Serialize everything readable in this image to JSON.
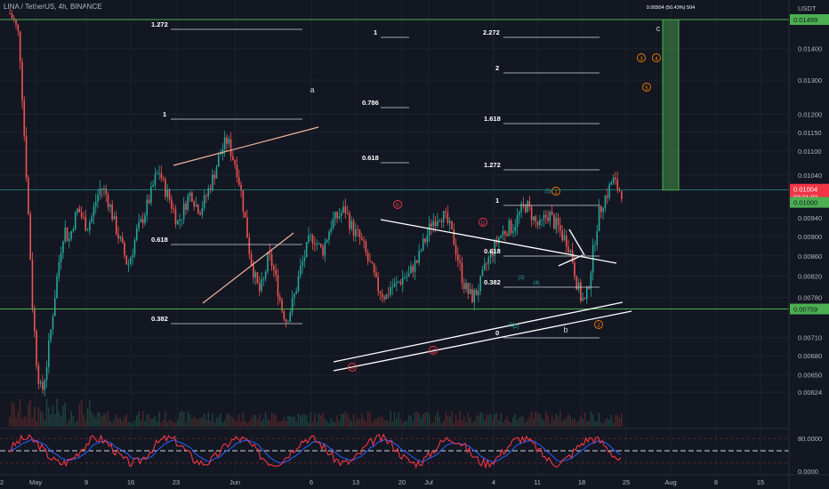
{
  "header": {
    "title": "LINA / TetherUS, 4h, BINANCE"
  },
  "chart_data": {
    "type": "candlestick",
    "symbol": "LINA / TetherUS",
    "timeframe": "4h",
    "exchange": "BINANCE",
    "price_axis": {
      "currency": "USDT",
      "scale": "log",
      "ylim": [
        0.006,
        0.0155
      ],
      "ticks": [
        "0.01400",
        "0.01300",
        "0.01200",
        "0.01150",
        "0.01100",
        "0.01040",
        "0.00940",
        "0.00900",
        "0.00860",
        "0.00820",
        "0.00780",
        "0.00710",
        "0.00680",
        "0.00650",
        "0.00624"
      ]
    },
    "time_axis": {
      "ticks": [
        "May",
        "9",
        "16",
        "23",
        "Jun",
        "6",
        "13",
        "20",
        "Jul",
        "4",
        "11",
        "18",
        "25",
        "Aug",
        "8",
        "15",
        "22"
      ]
    },
    "price_badges": {
      "top_line": "0.01499",
      "current": "0.01004",
      "countdown": "03:21:03",
      "level2": "0.01000",
      "bottom_line": "0.00759"
    },
    "colors": {
      "up": "#26a69a",
      "down": "#ef5350",
      "level_line": "#4caf50",
      "trend_pink": "#f3b49d",
      "trend_white": "#ffffff",
      "wave_orange": "#f57c00",
      "wave_red": "#f23645",
      "wave_teal": "#26a69a",
      "rsi": "#f23645",
      "rsi_signal": "#2962ff"
    },
    "horizontal_levels": [
      "0.01499",
      "0.00759"
    ],
    "fib_labels": [
      {
        "text": "1.272",
        "group": "left"
      },
      {
        "text": "1",
        "group": "left"
      },
      {
        "text": "0.618",
        "group": "left"
      },
      {
        "text": "0.382",
        "group": "left"
      },
      {
        "text": "1",
        "group": "mid"
      },
      {
        "text": "0.786",
        "group": "mid"
      },
      {
        "text": "0.618",
        "group": "mid"
      },
      {
        "text": "2.272",
        "group": "right"
      },
      {
        "text": "2",
        "group": "right"
      },
      {
        "text": "1.618",
        "group": "right"
      },
      {
        "text": "1.272",
        "group": "right"
      },
      {
        "text": "1",
        "group": "right"
      },
      {
        "text": "0.618",
        "group": "right"
      },
      {
        "text": "0.382",
        "group": "right"
      },
      {
        "text": "0",
        "group": "right"
      }
    ],
    "projection": {
      "label": "0.00504 (50.43%) 504",
      "wave": "c"
    },
    "wave_labels": [
      {
        "text": "a",
        "style": "plain"
      },
      {
        "text": "b",
        "style": "plain"
      },
      {
        "text": "c",
        "style": "plain"
      },
      {
        "text": "A",
        "style": "red"
      },
      {
        "text": "B",
        "style": "red"
      },
      {
        "text": "C",
        "style": "red"
      },
      {
        "text": "D",
        "style": "red"
      },
      {
        "text": "1",
        "style": "orange"
      },
      {
        "text": "2",
        "style": "orange"
      },
      {
        "text": "3",
        "style": "orange"
      },
      {
        "text": "4",
        "style": "orange"
      },
      {
        "text": "5",
        "style": "orange"
      },
      {
        "text": "(1)",
        "style": "teal"
      },
      {
        "text": "(2)",
        "style": "teal"
      },
      {
        "text": "(3)",
        "style": "teal"
      },
      {
        "text": "(4)",
        "style": "teal"
      },
      {
        "text": "(5)",
        "style": "teal"
      }
    ],
    "rsi": {
      "ticks": [
        "80.0000",
        "0.0000"
      ],
      "upper": 80,
      "lower": 20,
      "mid": 50
    },
    "series_closes": [
      0.0152,
      0.0149,
      0.0144,
      0.0118,
      0.0096,
      0.0076,
      0.0066,
      0.0062,
      0.0066,
      0.0072,
      0.0079,
      0.0086,
      0.0092,
      0.0089,
      0.0093,
      0.0096,
      0.0094,
      0.0092,
      0.0094,
      0.0098,
      0.0101,
      0.01,
      0.0097,
      0.0093,
      0.009,
      0.0087,
      0.0084,
      0.0087,
      0.0091,
      0.0093,
      0.0096,
      0.0099,
      0.0103,
      0.0105,
      0.0101,
      0.0099,
      0.0096,
      0.0093,
      0.0095,
      0.0098,
      0.01,
      0.0097,
      0.0096,
      0.0098,
      0.0101,
      0.0104,
      0.0108,
      0.0111,
      0.0113,
      0.0109,
      0.0106,
      0.01,
      0.0093,
      0.0086,
      0.0082,
      0.0079,
      0.0081,
      0.0086,
      0.0084,
      0.008,
      0.0076,
      0.0074,
      0.0076,
      0.0079,
      0.0083,
      0.0086,
      0.0089,
      0.009,
      0.0088,
      0.0087,
      0.009,
      0.0093,
      0.0094,
      0.0095,
      0.0096,
      0.0093,
      0.0091,
      0.009,
      0.0088,
      0.0085,
      0.0083,
      0.008,
      0.0079,
      0.0078,
      0.008,
      0.008,
      0.0081,
      0.0082,
      0.0082,
      0.0084,
      0.0085,
      0.0088,
      0.009,
      0.0093,
      0.0094,
      0.0095,
      0.0094,
      0.0092,
      0.0089,
      0.0085,
      0.0081,
      0.0079,
      0.0078,
      0.0079,
      0.0081,
      0.0084,
      0.0086,
      0.0088,
      0.009,
      0.0091,
      0.0092,
      0.0092,
      0.0094,
      0.0096,
      0.0097,
      0.0095,
      0.0093,
      0.0092,
      0.0094,
      0.0095,
      0.0093,
      0.0092,
      0.009,
      0.0089,
      0.0086,
      0.0081,
      0.0078,
      0.0077,
      0.0082,
      0.0089,
      0.0095,
      0.0098,
      0.01,
      0.0103,
      0.0101,
      0.01
    ]
  }
}
